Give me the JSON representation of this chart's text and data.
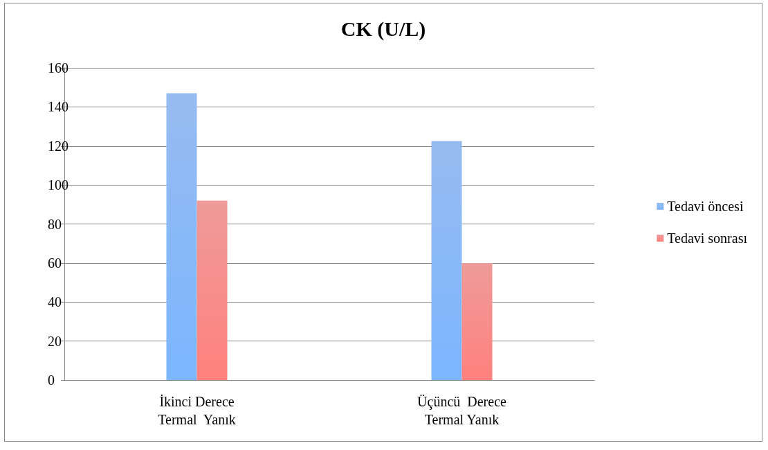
{
  "chart_data": {
    "type": "bar",
    "title": "CK (U/L)",
    "categories": [
      "İkinci Derece\nTermal  Yanık",
      "Üçüncü  Derece\nTermal Yanık"
    ],
    "series": [
      {
        "name": "Tedavi öncesi",
        "color": "#6b9fea",
        "values": [
          147,
          122.5
        ]
      },
      {
        "name": "Tedavi sonrası",
        "color": "#e8716e",
        "values": [
          92,
          60
        ]
      }
    ],
    "ylim": [
      0,
      160
    ],
    "yticks": [
      0,
      20,
      40,
      60,
      80,
      100,
      120,
      140,
      160
    ],
    "grid": "y",
    "legend": "right"
  }
}
